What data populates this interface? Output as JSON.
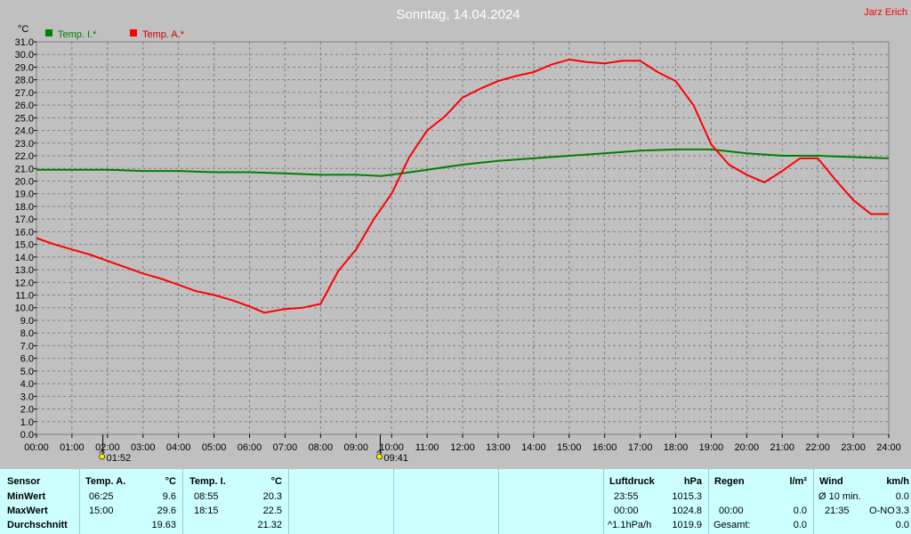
{
  "header": {
    "title": "Sonntag, 14.04.2024",
    "author": "Jarz Erich"
  },
  "chart_data": {
    "type": "line",
    "title": "Sonntag, 14.04.2024",
    "ylabel": "°C",
    "ylim": [
      0,
      31
    ],
    "ytick_step": 1,
    "xlim": [
      0,
      24
    ],
    "xticks": [
      "00:00",
      "01:00",
      "02:00",
      "03:00",
      "04:00",
      "05:00",
      "06:00",
      "07:00",
      "08:00",
      "09:00",
      "10:00",
      "11:00",
      "12:00",
      "13:00",
      "14:00",
      "15:00",
      "16:00",
      "17:00",
      "18:00",
      "19:00",
      "20:00",
      "21:00",
      "22:00",
      "23:00",
      "24:00"
    ],
    "grid": true,
    "legend": "top-left",
    "markers": [
      {
        "x": 1.87,
        "label": "01:52",
        "icon": "sunrise-icon"
      },
      {
        "x": 9.68,
        "label": "09:41",
        "icon": "sunset-icon"
      }
    ],
    "series": [
      {
        "name": "Temp. I.*",
        "color": "#008000",
        "x": [
          0,
          1,
          2,
          3,
          4,
          5,
          6,
          7,
          8,
          9,
          9.7,
          10,
          11,
          12,
          13,
          14,
          15,
          16,
          17,
          18,
          19,
          20,
          21,
          22,
          23,
          24
        ],
        "y": [
          20.9,
          20.9,
          20.9,
          20.8,
          20.8,
          20.7,
          20.7,
          20.6,
          20.5,
          20.5,
          20.4,
          20.5,
          20.9,
          21.3,
          21.6,
          21.8,
          22.0,
          22.2,
          22.4,
          22.5,
          22.5,
          22.2,
          22.0,
          22.0,
          21.9,
          21.8
        ]
      },
      {
        "name": "Temp. A.*",
        "color": "#ff0000",
        "x": [
          0,
          0.5,
          1,
          1.5,
          2,
          2.5,
          3,
          3.5,
          4,
          4.5,
          5,
          5.5,
          6,
          6.42,
          7,
          7.5,
          8,
          8.5,
          9,
          9.5,
          10,
          10.5,
          11,
          11.5,
          12,
          12.5,
          13,
          13.5,
          14,
          14.5,
          15,
          15.5,
          16,
          16.5,
          17,
          17.5,
          18,
          18.5,
          19,
          19.5,
          20,
          20.5,
          21,
          21.5,
          22,
          22.5,
          23,
          23.5,
          24
        ],
        "y": [
          15.5,
          15.0,
          14.6,
          14.2,
          13.7,
          13.2,
          12.7,
          12.3,
          11.8,
          11.3,
          11.0,
          10.6,
          10.1,
          9.6,
          9.9,
          10.0,
          10.3,
          12.9,
          14.6,
          17.0,
          19.0,
          21.9,
          24.0,
          25.1,
          26.6,
          27.3,
          27.9,
          28.3,
          28.6,
          29.2,
          29.6,
          29.4,
          29.3,
          29.5,
          29.5,
          28.6,
          27.9,
          26.0,
          22.9,
          21.3,
          20.5,
          19.9,
          20.8,
          21.8,
          21.8,
          20.1,
          18.5,
          17.4,
          17.4
        ]
      }
    ]
  },
  "table": {
    "sensor": {
      "header": "Sensor",
      "rows": [
        "MinWert",
        "MaxWert",
        "Durchschnitt"
      ]
    },
    "temp_a": {
      "header": "Temp. A.",
      "unit": "°C",
      "min_time": "06:25",
      "min_val": "9.6",
      "max_time": "15:00",
      "max_val": "29.6",
      "avg": "19.63"
    },
    "temp_i": {
      "header": "Temp. I.",
      "unit": "°C",
      "min_time": "08:55",
      "min_val": "20.3",
      "max_time": "18:15",
      "max_val": "22.5",
      "avg": "21.32"
    },
    "luftdruck": {
      "header": "Luftdruck",
      "unit": "hPa",
      "min_time": "23:55",
      "min_val": "1015.3",
      "max_time": "00:00",
      "max_val": "1024.8",
      "trend": "^1.1hPa/h",
      "avg": "1019.9"
    },
    "regen": {
      "header": "Regen",
      "unit": "l/m²",
      "max_time": "00:00",
      "max_val": "0.0",
      "total_label": "Gesamt:",
      "total_val": "0.0"
    },
    "wind": {
      "header": "Wind",
      "unit": "km/h",
      "min_time": "Ø 10 min.",
      "min_val": "0.0",
      "max_time": "21:35",
      "max_dir": "O-NO",
      "max_val": "3.3",
      "avg": "0.0"
    }
  }
}
